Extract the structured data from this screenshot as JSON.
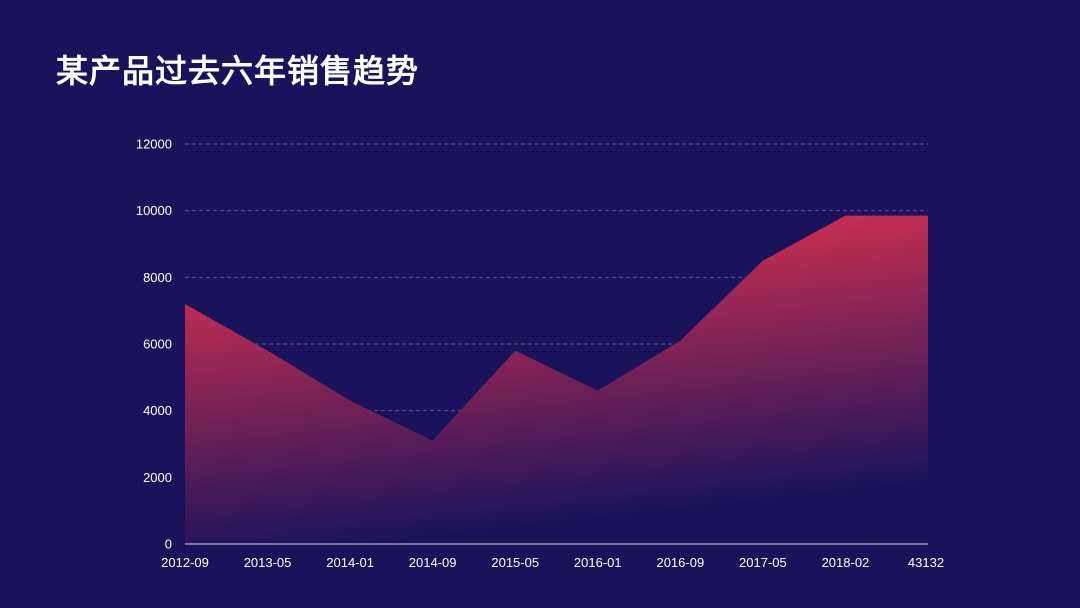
{
  "page": {
    "title": "某产品过去六年销售趋势"
  },
  "chart_data": {
    "type": "area",
    "title": "某产品过去六年销售趋势",
    "xlabel": "",
    "ylabel": "",
    "ylim": [
      0,
      12000
    ],
    "yticks": [
      0,
      2000,
      4000,
      6000,
      8000,
      10000,
      12000
    ],
    "grid": true,
    "legend": false,
    "x_tick_labels": [
      "2012-09",
      "2013-05",
      "2014-01",
      "2014-09",
      "2015-05",
      "2016-01",
      "2016-09",
      "2017-05",
      "2018-02",
      "43132"
    ],
    "points": [
      {
        "x": 0,
        "y": 7200
      },
      {
        "x": 1,
        "y": 5800
      },
      {
        "x": 2,
        "y": 4300
      },
      {
        "x": 3,
        "y": 3100
      },
      {
        "x": 4,
        "y": 5800
      },
      {
        "x": 5,
        "y": 4600
      },
      {
        "x": 6,
        "y": 6100
      },
      {
        "x": 7,
        "y": 8500
      },
      {
        "x": 8,
        "y": 9850
      },
      {
        "x": 9,
        "y": 9850
      }
    ],
    "colors": {
      "background": "#1a135c",
      "area_top": "#f4354d",
      "area_bottom": "#1a135c",
      "grid": "#5a5596",
      "axis": "#d8d6ec",
      "text": "#ffffff"
    }
  }
}
